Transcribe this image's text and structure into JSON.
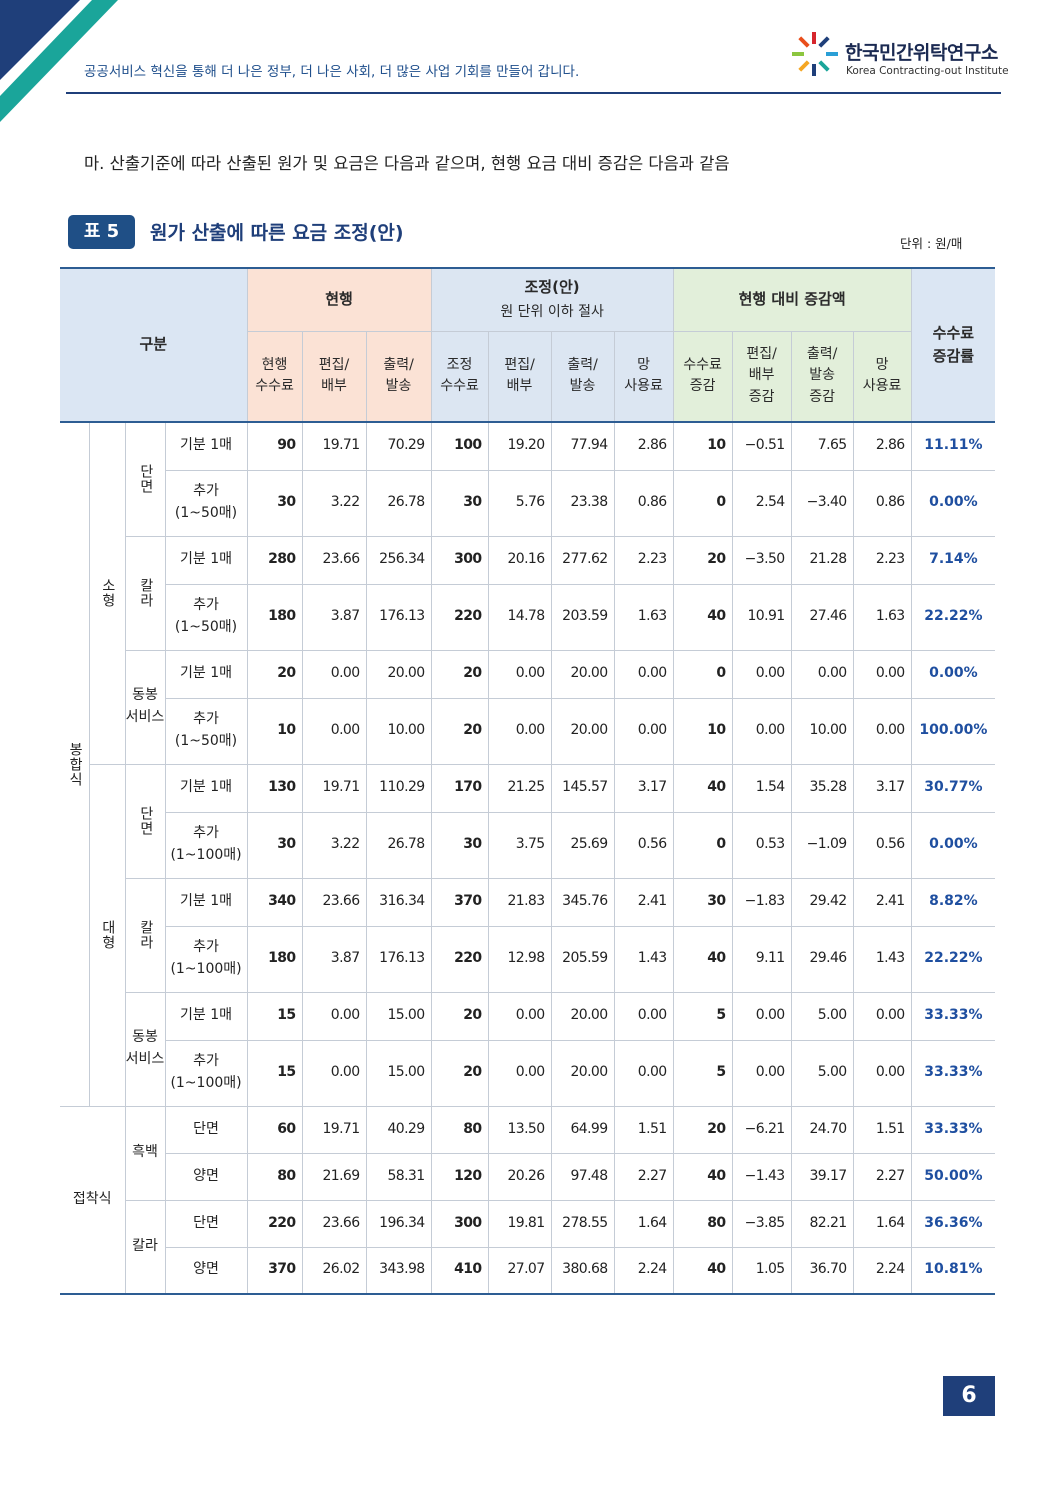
{
  "header": {
    "tagline": "공공서비스 혁신을 통해 더 나은 정부, 더 나은 사회, 더 많은 사업 기회를 만들어 갑니다.",
    "logo_name": "한국민간위탁연구소",
    "logo_sub": "Korea Contracting-out Institute"
  },
  "intro": "마. 산출기준에 따라 산출된 원가 및 요금은 다음과 같으며, 현행 요금 대비 증감은 다음과 같음",
  "table_label": "표 5",
  "table_title": "원가 산출에 따른 요금 조정(안)",
  "unit": "단위 : 원/매",
  "table": {
    "head": {
      "category": "구분",
      "current": "현행",
      "adjusted": "조정(안)",
      "adjusted_note": "원 단위 이하 절사",
      "change": "현행 대비 증감액",
      "rate": "수수료\n증감률",
      "sub": [
        "현행\n수수료",
        "편집/\n배부",
        "출력/\n발송",
        "조정\n수수료",
        "편집/\n배부",
        "출력/\n발송",
        "망\n사용료",
        "수수료\n증감",
        "편집/\n배부\n증감",
        "출력/\n발송\n증감",
        "망\n사용료"
      ]
    },
    "sections": [
      {
        "label": "봉합식",
        "parts": [
          {
            "label": "소형",
            "groups": [
              {
                "label": "단면",
                "rows": [
                  {
                    "label": "기분 1매",
                    "values": [
                      "90",
                      "19.71",
                      "70.29",
                      "100",
                      "19.20",
                      "77.94",
                      "2.86",
                      "10",
                      "−0.51",
                      "7.65",
                      "2.86",
                      "11.11%"
                    ]
                  },
                  {
                    "label": "추가\n(1~50매)",
                    "values": [
                      "30",
                      "3.22",
                      "26.78",
                      "30",
                      "5.76",
                      "23.38",
                      "0.86",
                      "0",
                      "2.54",
                      "−3.40",
                      "0.86",
                      "0.00%"
                    ]
                  }
                ]
              },
              {
                "label": "칼라",
                "rows": [
                  {
                    "label": "기분 1매",
                    "values": [
                      "280",
                      "23.66",
                      "256.34",
                      "300",
                      "20.16",
                      "277.62",
                      "2.23",
                      "20",
                      "−3.50",
                      "21.28",
                      "2.23",
                      "7.14%"
                    ]
                  },
                  {
                    "label": "추가\n(1~50매)",
                    "values": [
                      "180",
                      "3.87",
                      "176.13",
                      "220",
                      "14.78",
                      "203.59",
                      "1.63",
                      "40",
                      "10.91",
                      "27.46",
                      "1.63",
                      "22.22%"
                    ]
                  }
                ]
              },
              {
                "label": "동봉\n서비스",
                "rows": [
                  {
                    "label": "기분 1매",
                    "values": [
                      "20",
                      "0.00",
                      "20.00",
                      "20",
                      "0.00",
                      "20.00",
                      "0.00",
                      "0",
                      "0.00",
                      "0.00",
                      "0.00",
                      "0.00%"
                    ]
                  },
                  {
                    "label": "추가\n(1~50매)",
                    "values": [
                      "10",
                      "0.00",
                      "10.00",
                      "20",
                      "0.00",
                      "20.00",
                      "0.00",
                      "10",
                      "0.00",
                      "10.00",
                      "0.00",
                      "100.00%"
                    ]
                  }
                ]
              }
            ]
          },
          {
            "label": "대형",
            "groups": [
              {
                "label": "단면",
                "rows": [
                  {
                    "label": "기분 1매",
                    "values": [
                      "130",
                      "19.71",
                      "110.29",
                      "170",
                      "21.25",
                      "145.57",
                      "3.17",
                      "40",
                      "1.54",
                      "35.28",
                      "3.17",
                      "30.77%"
                    ]
                  },
                  {
                    "label": "추가\n(1~100매)",
                    "values": [
                      "30",
                      "3.22",
                      "26.78",
                      "30",
                      "3.75",
                      "25.69",
                      "0.56",
                      "0",
                      "0.53",
                      "−1.09",
                      "0.56",
                      "0.00%"
                    ]
                  }
                ]
              },
              {
                "label": "칼라",
                "rows": [
                  {
                    "label": "기분 1매",
                    "values": [
                      "340",
                      "23.66",
                      "316.34",
                      "370",
                      "21.83",
                      "345.76",
                      "2.41",
                      "30",
                      "−1.83",
                      "29.42",
                      "2.41",
                      "8.82%"
                    ]
                  },
                  {
                    "label": "추가\n(1~100매)",
                    "values": [
                      "180",
                      "3.87",
                      "176.13",
                      "220",
                      "12.98",
                      "205.59",
                      "1.43",
                      "40",
                      "9.11",
                      "29.46",
                      "1.43",
                      "22.22%"
                    ]
                  }
                ]
              },
              {
                "label": "동봉\n서비스",
                "rows": [
                  {
                    "label": "기분 1매",
                    "values": [
                      "15",
                      "0.00",
                      "15.00",
                      "20",
                      "0.00",
                      "20.00",
                      "0.00",
                      "5",
                      "0.00",
                      "5.00",
                      "0.00",
                      "33.33%"
                    ]
                  },
                  {
                    "label": "추가\n(1~100매)",
                    "values": [
                      "15",
                      "0.00",
                      "15.00",
                      "20",
                      "0.00",
                      "20.00",
                      "0.00",
                      "5",
                      "0.00",
                      "5.00",
                      "0.00",
                      "33.33%"
                    ]
                  }
                ]
              }
            ]
          }
        ]
      },
      {
        "label": "접착식",
        "groups": [
          {
            "label": "흑백",
            "rows": [
              {
                "label": "단면",
                "values": [
                  "60",
                  "19.71",
                  "40.29",
                  "80",
                  "13.50",
                  "64.99",
                  "1.51",
                  "20",
                  "−6.21",
                  "24.70",
                  "1.51",
                  "33.33%"
                ]
              },
              {
                "label": "양면",
                "values": [
                  "80",
                  "21.69",
                  "58.31",
                  "120",
                  "20.26",
                  "97.48",
                  "2.27",
                  "40",
                  "−1.43",
                  "39.17",
                  "2.27",
                  "50.00%"
                ]
              }
            ]
          },
          {
            "label": "칼라",
            "rows": [
              {
                "label": "단면",
                "values": [
                  "220",
                  "23.66",
                  "196.34",
                  "300",
                  "19.81",
                  "278.55",
                  "1.64",
                  "80",
                  "−3.85",
                  "82.21",
                  "1.64",
                  "36.36%"
                ]
              },
              {
                "label": "양면",
                "values": [
                  "370",
                  "26.02",
                  "343.98",
                  "410",
                  "27.07",
                  "380.68",
                  "2.24",
                  "40",
                  "1.05",
                  "36.70",
                  "2.24",
                  "10.81%"
                ]
              }
            ]
          }
        ]
      }
    ]
  },
  "page_number": "6"
}
